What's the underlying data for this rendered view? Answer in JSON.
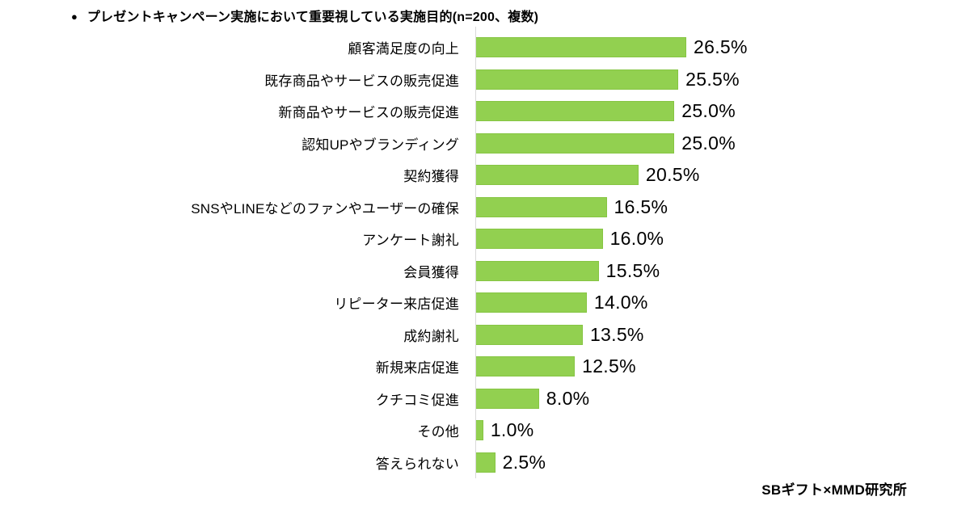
{
  "title": {
    "bullet": "●",
    "text": "プレゼントキャンペーン実施において重要視している実施目的(n=200、複数)"
  },
  "source": "SBギフト×MMD研究所",
  "colors": {
    "bar_fill": "#92d050",
    "bar_border": "#86c543",
    "axis_line": "#d9d9d9",
    "text": "#000000",
    "background": "#ffffff"
  },
  "chart_data": {
    "type": "bar",
    "orientation": "horizontal",
    "title": "プレゼントキャンペーン実施において重要視している実施目的(n=200、複数)",
    "sample_note": "n=200、複数",
    "xlabel": "",
    "ylabel": "",
    "xlim": [
      0,
      30
    ],
    "grid": false,
    "legend": null,
    "value_suffix": "%",
    "categories": [
      "顧客満足度の向上",
      "既存商品やサービスの販売促進",
      "新商品やサービスの販売促進",
      "認知UPやブランディング",
      "契約獲得",
      "SNSやLINEなどのファンやユーザーの確保",
      "アンケート謝礼",
      "会員獲得",
      "リピーター来店促進",
      "成約謝礼",
      "新規来店促進",
      "クチコミ促進",
      "その他",
      "答えられない"
    ],
    "values": [
      26.5,
      25.5,
      25.0,
      25.0,
      20.5,
      16.5,
      16.0,
      15.5,
      14.0,
      13.5,
      12.5,
      8.0,
      1.0,
      2.5
    ]
  }
}
